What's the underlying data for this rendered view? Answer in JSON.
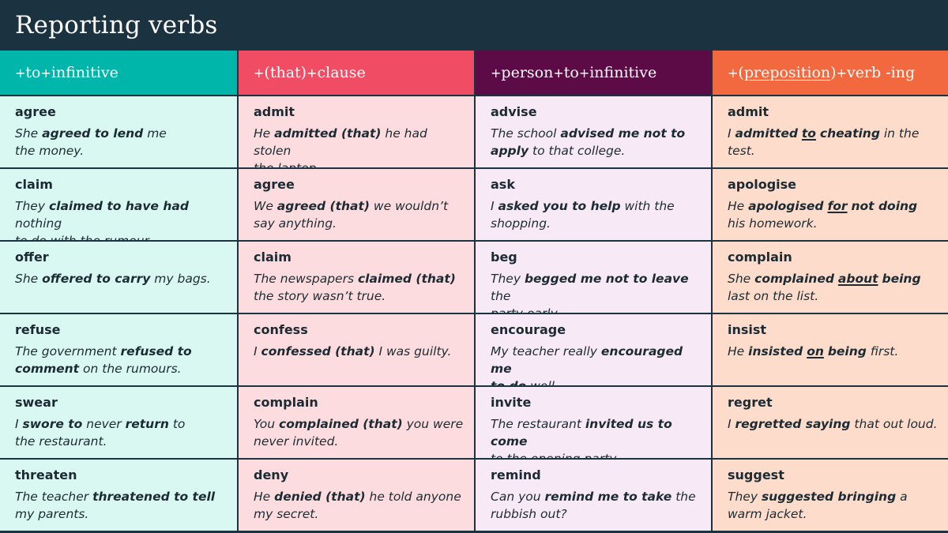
{
  "title": "Reporting verbs",
  "columns": [
    {
      "header": [
        {
          "t": "+",
          "p": true
        },
        {
          "t": " to "
        },
        {
          "t": "+",
          "p": true
        },
        {
          "t": " infinitive"
        }
      ],
      "header_color": "#00b5aa",
      "cell_color": "#d9f8f1",
      "rows": [
        {
          "verb": "agree",
          "example": [
            {
              "t": "She "
            },
            {
              "t": "agreed to lend",
              "b": true
            },
            {
              "t": " me"
            },
            {
              "br": true
            },
            {
              "t": "the money."
            }
          ]
        },
        {
          "verb": "claim",
          "example": [
            {
              "t": "They "
            },
            {
              "t": "claimed to have had",
              "b": true
            },
            {
              "t": " nothing"
            },
            {
              "br": true
            },
            {
              "t": "to do with the rumour."
            }
          ]
        },
        {
          "verb": "offer",
          "example": [
            {
              "t": "She "
            },
            {
              "t": "offered to carry",
              "b": true
            },
            {
              "t": " my bags."
            }
          ]
        },
        {
          "verb": "refuse",
          "example": [
            {
              "t": "The government "
            },
            {
              "t": "refused to",
              "b": true
            },
            {
              "br": true
            },
            {
              "t": "comment",
              "b": true
            },
            {
              "t": " on the rumours."
            }
          ]
        },
        {
          "verb": "swear",
          "example": [
            {
              "t": "I "
            },
            {
              "t": "swore to",
              "b": true
            },
            {
              "t": " never "
            },
            {
              "t": "return",
              "b": true
            },
            {
              "t": " to"
            },
            {
              "br": true
            },
            {
              "t": "the restaurant."
            }
          ]
        },
        {
          "verb": "threaten",
          "example": [
            {
              "t": "The teacher "
            },
            {
              "t": "threatened to tell",
              "b": true
            },
            {
              "br": true
            },
            {
              "t": "my parents."
            }
          ]
        }
      ]
    },
    {
      "header": [
        {
          "t": "+",
          "p": true
        },
        {
          "t": " (that) "
        },
        {
          "t": "+",
          "p": true
        },
        {
          "t": " clause"
        }
      ],
      "header_color": "#f04d64",
      "cell_color": "#fcdcdf",
      "rows": [
        {
          "verb": "admit",
          "example": [
            {
              "t": "He "
            },
            {
              "t": "admitted (that)",
              "b": true
            },
            {
              "t": " he had stolen"
            },
            {
              "br": true
            },
            {
              "t": "the laptop."
            }
          ]
        },
        {
          "verb": "agree",
          "example": [
            {
              "t": "We "
            },
            {
              "t": "agreed (that)",
              "b": true
            },
            {
              "t": " we wouldn’t"
            },
            {
              "br": true
            },
            {
              "t": "say anything."
            }
          ]
        },
        {
          "verb": "claim",
          "example": [
            {
              "t": "The newspapers "
            },
            {
              "t": "claimed (that)",
              "b": true
            },
            {
              "br": true
            },
            {
              "t": "the story wasn’t true."
            }
          ]
        },
        {
          "verb": "confess",
          "example": [
            {
              "t": "I "
            },
            {
              "t": "confessed (that)",
              "b": true
            },
            {
              "t": " I was guilty."
            }
          ]
        },
        {
          "verb": "complain",
          "example": [
            {
              "t": "You "
            },
            {
              "t": "complained (that)",
              "b": true
            },
            {
              "t": " you were"
            },
            {
              "br": true
            },
            {
              "t": "never invited."
            }
          ]
        },
        {
          "verb": "deny",
          "example": [
            {
              "t": "He "
            },
            {
              "t": "denied (that)",
              "b": true
            },
            {
              "t": " he told anyone"
            },
            {
              "br": true
            },
            {
              "t": "my secret."
            }
          ]
        }
      ]
    },
    {
      "header": [
        {
          "t": "+",
          "p": true
        },
        {
          "t": " person "
        },
        {
          "t": "+",
          "p": true
        },
        {
          "t": " to "
        },
        {
          "t": "+",
          "p": true
        },
        {
          "t": " infinitive"
        }
      ],
      "header_color": "#5c0b47",
      "cell_color": "#f8e9f7",
      "rows": [
        {
          "verb": "advise",
          "example": [
            {
              "t": "The school "
            },
            {
              "t": "advised me not to",
              "b": true
            },
            {
              "br": true
            },
            {
              "t": "apply",
              "b": true
            },
            {
              "t": " to that college."
            }
          ]
        },
        {
          "verb": "ask",
          "example": [
            {
              "t": "I "
            },
            {
              "t": "asked you to help",
              "b": true
            },
            {
              "t": " with the"
            },
            {
              "br": true
            },
            {
              "t": "shopping."
            }
          ]
        },
        {
          "verb": "beg",
          "example": [
            {
              "t": "They "
            },
            {
              "t": "begged me not to leave",
              "b": true
            },
            {
              "t": " the"
            },
            {
              "br": true
            },
            {
              "t": "party early."
            }
          ]
        },
        {
          "verb": "encourage",
          "example": [
            {
              "t": "My teacher really "
            },
            {
              "t": "encouraged me",
              "b": true
            },
            {
              "br": true
            },
            {
              "t": "to do",
              "b": true
            },
            {
              "t": " well."
            }
          ]
        },
        {
          "verb": "invite",
          "example": [
            {
              "t": "The restaurant "
            },
            {
              "t": "invited us to come",
              "b": true
            },
            {
              "br": true
            },
            {
              "t": "to the opening party."
            }
          ]
        },
        {
          "verb": "remind",
          "example": [
            {
              "t": "Can you "
            },
            {
              "t": "remind me to take",
              "b": true
            },
            {
              "t": " the"
            },
            {
              "br": true
            },
            {
              "t": "rubbish out?"
            }
          ]
        }
      ]
    },
    {
      "header": [
        {
          "t": "+",
          "p": true
        },
        {
          "t": " ("
        },
        {
          "t": "preposition",
          "u": true
        },
        {
          "t": ") "
        },
        {
          "t": "+",
          "p": true
        },
        {
          "t": " verb -ing"
        }
      ],
      "header_color": "#f2683f",
      "cell_color": "#fddccb",
      "rows": [
        {
          "verb": "admit",
          "example": [
            {
              "t": "I "
            },
            {
              "t": "admitted",
              "b": true
            },
            {
              "t": " "
            },
            {
              "t": "to",
              "b": true,
              "u": true
            },
            {
              "t": " "
            },
            {
              "t": "cheating",
              "b": true
            },
            {
              "t": " in the test."
            }
          ]
        },
        {
          "verb": "apologise",
          "example": [
            {
              "t": "He "
            },
            {
              "t": "apologised",
              "b": true
            },
            {
              "t": " "
            },
            {
              "t": "for",
              "b": true,
              "u": true
            },
            {
              "t": " "
            },
            {
              "t": "not doing",
              "b": true
            },
            {
              "br": true
            },
            {
              "t": "his homework."
            }
          ]
        },
        {
          "verb": "complain",
          "example": [
            {
              "t": "She "
            },
            {
              "t": "complained",
              "b": true
            },
            {
              "t": " "
            },
            {
              "t": "about",
              "b": true,
              "u": true
            },
            {
              "t": " "
            },
            {
              "t": "being",
              "b": true
            },
            {
              "br": true
            },
            {
              "t": "last on the list."
            }
          ]
        },
        {
          "verb": "insist",
          "example": [
            {
              "t": "He "
            },
            {
              "t": "insisted",
              "b": true
            },
            {
              "t": " "
            },
            {
              "t": "on",
              "b": true,
              "u": true
            },
            {
              "t": " "
            },
            {
              "t": "being",
              "b": true
            },
            {
              "t": " first."
            }
          ]
        },
        {
          "verb": "regret",
          "example": [
            {
              "t": "I "
            },
            {
              "t": "regretted saying",
              "b": true
            },
            {
              "t": " that out loud."
            }
          ]
        },
        {
          "verb": "suggest",
          "example": [
            {
              "t": "They "
            },
            {
              "t": "suggested bringing",
              "b": true
            },
            {
              "t": " a"
            },
            {
              "br": true
            },
            {
              "t": "warm jacket."
            }
          ]
        }
      ]
    }
  ]
}
